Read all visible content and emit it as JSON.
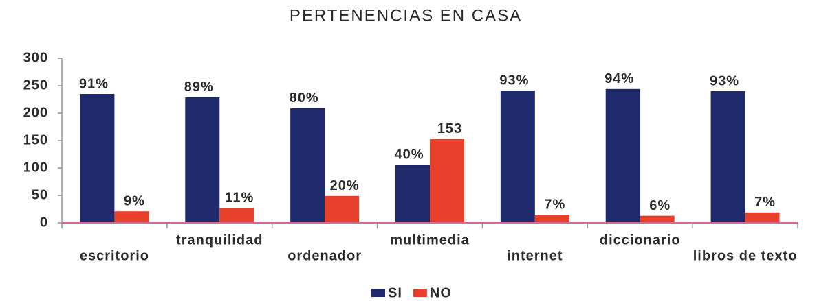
{
  "chart_data": {
    "type": "bar",
    "title": "PERTENENCIAS EN CASA",
    "categories": [
      "escritorio",
      "tranquilidad",
      "ordenador",
      "multimedia",
      "internet",
      "diccionario",
      "libros de texto"
    ],
    "series": [
      {
        "name": "SI",
        "color": "#1e2a6b",
        "values": [
          235,
          229,
          209,
          106,
          241,
          244,
          240
        ],
        "data_labels": [
          "91%",
          "89%",
          "80%",
          "40%",
          "93%",
          "94%",
          "93%"
        ]
      },
      {
        "name": "NO",
        "color": "#e8402a",
        "values": [
          21,
          27,
          49,
          153,
          15,
          13,
          19
        ],
        "data_labels": [
          "9%",
          "11%",
          "20%",
          "153",
          "7%",
          "6%",
          "7%"
        ]
      }
    ],
    "ylim": [
      0,
      300
    ],
    "yticks": [
      0,
      50,
      100,
      150,
      200,
      250,
      300
    ],
    "legend": "bottom"
  }
}
